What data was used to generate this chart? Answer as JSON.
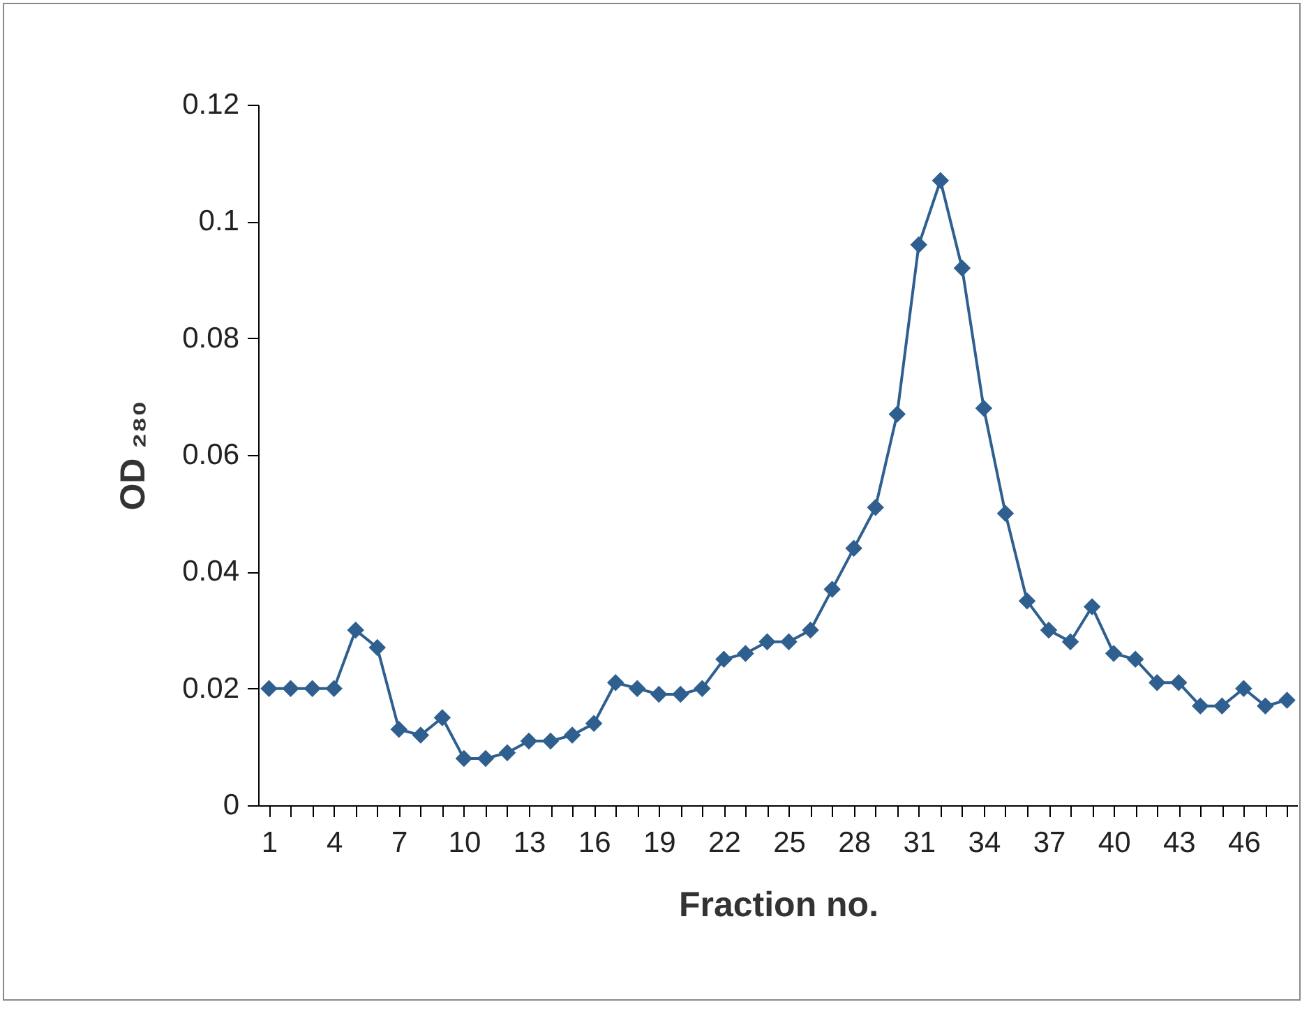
{
  "chart_data": {
    "type": "line",
    "xlabel": "Fraction no.",
    "ylabel": "OD ₂₈₀",
    "categories": [
      "1",
      null,
      null,
      "4",
      null,
      null,
      "7",
      null,
      null,
      "10",
      null,
      null,
      "13",
      null,
      null,
      "16",
      null,
      null,
      "19",
      null,
      null,
      "22",
      null,
      null,
      "25",
      null,
      null,
      "28",
      null,
      null,
      "31",
      null,
      null,
      "34",
      null,
      null,
      "37",
      null,
      null,
      "40",
      null,
      null,
      "43",
      null,
      null,
      "46",
      null,
      null
    ],
    "series": [
      {
        "color": "#2e5f8f",
        "values": [
          0.02,
          0.02,
          0.02,
          0.02,
          0.03,
          0.027,
          0.013,
          0.012,
          0.015,
          0.008,
          0.008,
          0.009,
          0.011,
          0.011,
          0.012,
          0.014,
          0.021,
          0.02,
          0.019,
          0.019,
          0.02,
          0.025,
          0.026,
          0.028,
          0.028,
          0.03,
          0.037,
          0.044,
          0.051,
          0.067,
          0.096,
          0.107,
          0.092,
          0.068,
          0.05,
          0.035,
          0.03,
          0.028,
          0.034,
          0.026,
          0.025,
          0.021,
          0.021,
          0.017,
          0.017,
          0.02,
          0.017,
          0.018
        ]
      }
    ],
    "ylim": [
      0,
      0.12
    ],
    "yticks": [
      0,
      0.02,
      0.04,
      0.06,
      0.08,
      0.1,
      0.12
    ],
    "grid": false,
    "marker": "diamond"
  }
}
